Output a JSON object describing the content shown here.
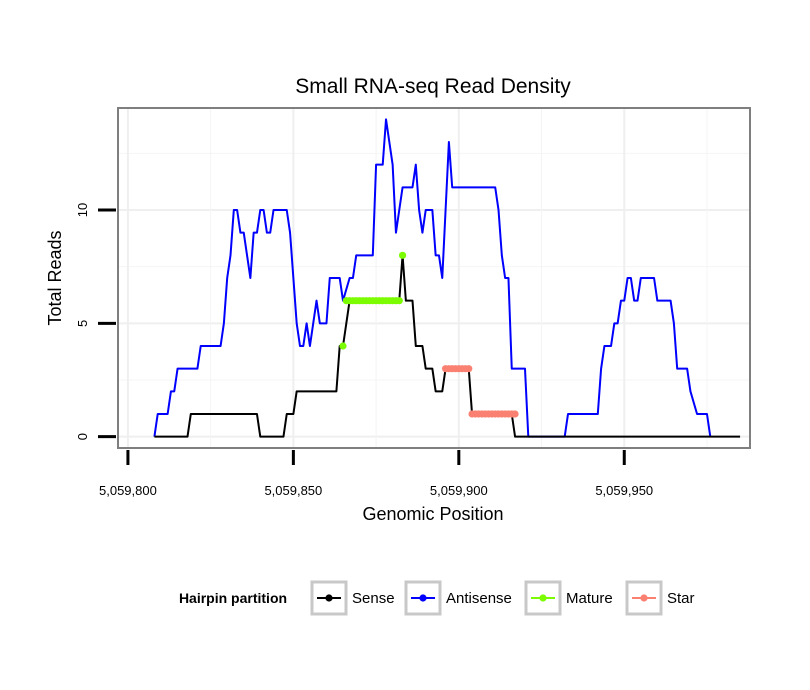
{
  "chart_data": {
    "type": "line",
    "title": "Small RNA-seq Read Density",
    "xlabel": "Genomic Position",
    "ylabel": "Total Reads",
    "xlim": [
      5059797,
      5059988
    ],
    "ylim": [
      -0.5,
      14.5
    ],
    "x_ticks": [
      5059800,
      5059850,
      5059900,
      5059950
    ],
    "x_tick_labels": [
      "5,059,800",
      "5,059,850",
      "5,059,900",
      "5,059,950"
    ],
    "y_ticks": [
      0,
      5,
      10
    ],
    "y_tick_labels": [
      "0",
      "5",
      "10"
    ],
    "grid": true,
    "legend": {
      "title": "Hairpin partition",
      "position": "bottom",
      "entries": [
        {
          "label": "Sense",
          "color": "#000000"
        },
        {
          "label": "Antisense",
          "color": "#0000ff"
        },
        {
          "label": "Mature",
          "color": "#7cfc00"
        },
        {
          "label": "Star",
          "color": "#fa8072"
        }
      ]
    },
    "series": [
      {
        "name": "Antisense",
        "color": "#0000ff",
        "points": [
          [
            5059808,
            0
          ],
          [
            5059809,
            1
          ],
          [
            5059812,
            1
          ],
          [
            5059813,
            2
          ],
          [
            5059814,
            2
          ],
          [
            5059815,
            3
          ],
          [
            5059821,
            3
          ],
          [
            5059822,
            4
          ],
          [
            5059828,
            4
          ],
          [
            5059829,
            5
          ],
          [
            5059830,
            7
          ],
          [
            5059831,
            8
          ],
          [
            5059832,
            10
          ],
          [
            5059833,
            10
          ],
          [
            5059834,
            9
          ],
          [
            5059835,
            9
          ],
          [
            5059836,
            8
          ],
          [
            5059837,
            7
          ],
          [
            5059838,
            9
          ],
          [
            5059839,
            9
          ],
          [
            5059840,
            10
          ],
          [
            5059841,
            10
          ],
          [
            5059842,
            9
          ],
          [
            5059843,
            9
          ],
          [
            5059844,
            10
          ],
          [
            5059848,
            10
          ],
          [
            5059849,
            9
          ],
          [
            5059850,
            7
          ],
          [
            5059851,
            5
          ],
          [
            5059852,
            4
          ],
          [
            5059853,
            4
          ],
          [
            5059854,
            5
          ],
          [
            5059855,
            4
          ],
          [
            5059856,
            5
          ],
          [
            5059857,
            6
          ],
          [
            5059858,
            5
          ],
          [
            5059860,
            5
          ],
          [
            5059861,
            7
          ],
          [
            5059864,
            7
          ],
          [
            5059865,
            6
          ],
          [
            5059867,
            7
          ],
          [
            5059868,
            7
          ],
          [
            5059869,
            8
          ],
          [
            5059874,
            8
          ],
          [
            5059875,
            12
          ],
          [
            5059877,
            12
          ],
          [
            5059878,
            14
          ],
          [
            5059879,
            13
          ],
          [
            5059880,
            12
          ],
          [
            5059881,
            9
          ],
          [
            5059882,
            10
          ],
          [
            5059883,
            11
          ],
          [
            5059885,
            11
          ],
          [
            5059886,
            11
          ],
          [
            5059887,
            12
          ],
          [
            5059888,
            10
          ],
          [
            5059889,
            9
          ],
          [
            5059890,
            10
          ],
          [
            5059892,
            10
          ],
          [
            5059893,
            8
          ],
          [
            5059894,
            8
          ],
          [
            5059895,
            7
          ],
          [
            5059896,
            10
          ],
          [
            5059897,
            13
          ],
          [
            5059898,
            11
          ],
          [
            5059911,
            11
          ],
          [
            5059912,
            10
          ],
          [
            5059913,
            8
          ],
          [
            5059914,
            7
          ],
          [
            5059915,
            7
          ],
          [
            5059916,
            3
          ],
          [
            5059920,
            3
          ],
          [
            5059921,
            0
          ],
          [
            5059932,
            0
          ],
          [
            5059933,
            1
          ],
          [
            5059942,
            1
          ],
          [
            5059943,
            3
          ],
          [
            5059944,
            4
          ],
          [
            5059946,
            4
          ],
          [
            5059947,
            5
          ],
          [
            5059948,
            5
          ],
          [
            5059949,
            6
          ],
          [
            5059950,
            6
          ],
          [
            5059951,
            7
          ],
          [
            5059952,
            7
          ],
          [
            5059953,
            6
          ],
          [
            5059954,
            6
          ],
          [
            5059955,
            7
          ],
          [
            5059959,
            7
          ],
          [
            5059960,
            6
          ],
          [
            5059964,
            6
          ],
          [
            5059965,
            5
          ],
          [
            5059966,
            3
          ],
          [
            5059969,
            3
          ],
          [
            5059970,
            2
          ],
          [
            5059972,
            1
          ],
          [
            5059975,
            1
          ],
          [
            5059976,
            0
          ]
        ]
      },
      {
        "name": "Sense",
        "color": "#000000",
        "points": [
          [
            5059808,
            0
          ],
          [
            5059818,
            0
          ],
          [
            5059819,
            1
          ],
          [
            5059839,
            1
          ],
          [
            5059840,
            0
          ],
          [
            5059847,
            0
          ],
          [
            5059848,
            1
          ],
          [
            5059850,
            1
          ],
          [
            5059851,
            2
          ],
          [
            5059863,
            2
          ],
          [
            5059864,
            4
          ],
          [
            5059865,
            4
          ],
          [
            5059867,
            6
          ],
          [
            5059882,
            6
          ],
          [
            5059883,
            8
          ],
          [
            5059884,
            6
          ],
          [
            5059886,
            6
          ],
          [
            5059887,
            4
          ],
          [
            5059889,
            4
          ],
          [
            5059890,
            3
          ],
          [
            5059892,
            3
          ],
          [
            5059893,
            2
          ],
          [
            5059895,
            2
          ],
          [
            5059896,
            3
          ],
          [
            5059903,
            3
          ],
          [
            5059904,
            1
          ],
          [
            5059916,
            1
          ],
          [
            5059917,
            0
          ],
          [
            5059985,
            0
          ]
        ]
      },
      {
        "name": "Mature",
        "color": "#7cfc00",
        "points": [
          [
            5059865,
            4
          ],
          [
            5059866,
            6
          ],
          [
            5059867,
            6
          ],
          [
            5059868,
            6
          ],
          [
            5059869,
            6
          ],
          [
            5059870,
            6
          ],
          [
            5059871,
            6
          ],
          [
            5059872,
            6
          ],
          [
            5059873,
            6
          ],
          [
            5059874,
            6
          ],
          [
            5059875,
            6
          ],
          [
            5059876,
            6
          ],
          [
            5059877,
            6
          ],
          [
            5059878,
            6
          ],
          [
            5059879,
            6
          ],
          [
            5059880,
            6
          ],
          [
            5059881,
            6
          ],
          [
            5059882,
            6
          ],
          [
            5059883,
            8
          ]
        ]
      },
      {
        "name": "Star",
        "color": "#fa8072",
        "points": [
          [
            5059896,
            3
          ],
          [
            5059897,
            3
          ],
          [
            5059898,
            3
          ],
          [
            5059899,
            3
          ],
          [
            5059900,
            3
          ],
          [
            5059901,
            3
          ],
          [
            5059902,
            3
          ],
          [
            5059903,
            3
          ],
          [
            5059904,
            1
          ],
          [
            5059905,
            1
          ],
          [
            5059906,
            1
          ],
          [
            5059907,
            1
          ],
          [
            5059908,
            1
          ],
          [
            5059909,
            1
          ],
          [
            5059910,
            1
          ],
          [
            5059911,
            1
          ],
          [
            5059912,
            1
          ],
          [
            5059913,
            1
          ],
          [
            5059914,
            1
          ],
          [
            5059915,
            1
          ],
          [
            5059916,
            1
          ],
          [
            5059917,
            1
          ]
        ]
      }
    ]
  }
}
